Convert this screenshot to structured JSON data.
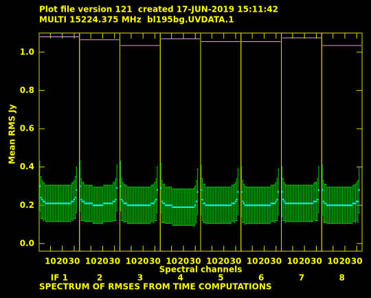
{
  "chart_data": {
    "type": "errorbar",
    "title": "Plot file version 121  created 17-JUN-2019 15:11:42",
    "subtitle": "MULTI 15224.375 MHz  bl195bg.UVDATA.1",
    "ylabel": "Mean RMS Jy",
    "xlabel": "Spectral channels",
    "footer": "SPECTRUM OF RMSES FROM TIME COMPUTATIONS",
    "ylim": [
      -0.04,
      1.1
    ],
    "yticks": [
      {
        "value": 0,
        "label": "0.0"
      },
      0.2,
      0.4,
      0.6,
      0.8,
      {
        "value": 1,
        "label": "1.0"
      }
    ],
    "xlim": [
      0.5,
      34.5
    ],
    "xticks": [
      10,
      20,
      30
    ],
    "x": [
      1,
      2,
      3,
      4,
      5,
      6,
      7,
      8,
      9,
      10,
      11,
      12,
      13,
      14,
      15,
      16,
      17,
      18,
      19,
      20,
      21,
      22,
      23,
      24,
      25,
      26,
      27,
      28,
      29,
      30,
      31,
      32
    ],
    "colors": {
      "points": "#00ffff",
      "bars": "#00c800",
      "max_line": "#e0a0e0",
      "frame": "#e0e000",
      "text": "#ffff00"
    },
    "series": [
      {
        "name": "IF 1",
        "max": 1.08,
        "values": [
          0.3,
          0.24,
          0.23,
          0.22,
          0.22,
          0.21,
          0.21,
          0.21,
          0.21,
          0.21,
          0.21,
          0.21,
          0.21,
          0.21,
          0.21,
          0.21,
          0.21,
          0.21,
          0.21,
          0.21,
          0.21,
          0.21,
          0.21,
          0.21,
          0.21,
          0.21,
          0.21,
          0.22,
          0.22,
          0.23,
          0.24,
          0.28
        ],
        "errors": [
          0.13,
          0.11,
          0.1,
          0.1,
          0.095,
          0.095,
          0.095,
          0.095,
          0.095,
          0.095,
          0.095,
          0.095,
          0.095,
          0.095,
          0.095,
          0.095,
          0.095,
          0.095,
          0.095,
          0.095,
          0.095,
          0.095,
          0.095,
          0.095,
          0.095,
          0.095,
          0.095,
          0.095,
          0.1,
          0.1,
          0.11,
          0.12
        ]
      },
      {
        "name": "2",
        "max": 1.065,
        "values": [
          0.3,
          0.23,
          0.22,
          0.22,
          0.21,
          0.21,
          0.21,
          0.21,
          0.21,
          0.21,
          0.21,
          0.2,
          0.2,
          0.2,
          0.2,
          0.2,
          0.2,
          0.2,
          0.2,
          0.2,
          0.21,
          0.21,
          0.21,
          0.21,
          0.21,
          0.21,
          0.21,
          0.21,
          0.22,
          0.22,
          0.23,
          0.29
        ],
        "errors": [
          0.13,
          0.11,
          0.1,
          0.1,
          0.095,
          0.095,
          0.095,
          0.095,
          0.095,
          0.095,
          0.095,
          0.095,
          0.095,
          0.095,
          0.095,
          0.095,
          0.095,
          0.095,
          0.095,
          0.095,
          0.095,
          0.095,
          0.095,
          0.095,
          0.095,
          0.095,
          0.095,
          0.095,
          0.1,
          0.1,
          0.11,
          0.12
        ]
      },
      {
        "name": "3",
        "max": 1.035,
        "values": [
          0.3,
          0.23,
          0.22,
          0.21,
          0.21,
          0.21,
          0.2,
          0.2,
          0.2,
          0.2,
          0.2,
          0.2,
          0.2,
          0.2,
          0.2,
          0.2,
          0.2,
          0.2,
          0.2,
          0.2,
          0.2,
          0.2,
          0.2,
          0.2,
          0.2,
          0.2,
          0.21,
          0.21,
          0.21,
          0.22,
          0.23,
          0.28
        ],
        "errors": [
          0.13,
          0.11,
          0.1,
          0.1,
          0.095,
          0.095,
          0.095,
          0.095,
          0.095,
          0.095,
          0.095,
          0.095,
          0.095,
          0.095,
          0.095,
          0.095,
          0.095,
          0.095,
          0.095,
          0.095,
          0.095,
          0.095,
          0.095,
          0.095,
          0.095,
          0.095,
          0.095,
          0.095,
          0.1,
          0.1,
          0.11,
          0.12
        ]
      },
      {
        "name": "4",
        "max": 1.07,
        "values": [
          0.29,
          0.22,
          0.21,
          0.21,
          0.2,
          0.2,
          0.2,
          0.2,
          0.2,
          0.2,
          0.19,
          0.19,
          0.19,
          0.19,
          0.19,
          0.19,
          0.19,
          0.19,
          0.19,
          0.19,
          0.19,
          0.19,
          0.19,
          0.19,
          0.19,
          0.19,
          0.19,
          0.19,
          0.19,
          0.2,
          0.22,
          0.27
        ],
        "errors": [
          0.13,
          0.11,
          0.1,
          0.1,
          0.095,
          0.095,
          0.095,
          0.095,
          0.095,
          0.095,
          0.095,
          0.095,
          0.095,
          0.095,
          0.095,
          0.095,
          0.095,
          0.095,
          0.095,
          0.095,
          0.095,
          0.095,
          0.095,
          0.095,
          0.095,
          0.095,
          0.095,
          0.095,
          0.1,
          0.1,
          0.11,
          0.12
        ]
      },
      {
        "name": "5",
        "max": 1.055,
        "values": [
          0.28,
          0.23,
          0.21,
          0.21,
          0.2,
          0.2,
          0.2,
          0.2,
          0.2,
          0.2,
          0.2,
          0.2,
          0.2,
          0.2,
          0.2,
          0.2,
          0.2,
          0.2,
          0.2,
          0.2,
          0.2,
          0.2,
          0.2,
          0.2,
          0.2,
          0.2,
          0.21,
          0.21,
          0.21,
          0.22,
          0.23,
          0.27
        ],
        "errors": [
          0.13,
          0.11,
          0.1,
          0.1,
          0.095,
          0.095,
          0.095,
          0.095,
          0.095,
          0.095,
          0.095,
          0.095,
          0.095,
          0.095,
          0.095,
          0.095,
          0.095,
          0.095,
          0.095,
          0.095,
          0.095,
          0.095,
          0.095,
          0.095,
          0.095,
          0.095,
          0.095,
          0.095,
          0.1,
          0.1,
          0.11,
          0.12
        ]
      },
      {
        "name": "6",
        "max": 1.055,
        "values": [
          0.27,
          0.22,
          0.21,
          0.2,
          0.2,
          0.2,
          0.2,
          0.2,
          0.2,
          0.2,
          0.2,
          0.2,
          0.2,
          0.2,
          0.2,
          0.2,
          0.2,
          0.2,
          0.2,
          0.2,
          0.2,
          0.2,
          0.2,
          0.2,
          0.2,
          0.21,
          0.21,
          0.21,
          0.21,
          0.22,
          0.23,
          0.27
        ],
        "errors": [
          0.13,
          0.11,
          0.1,
          0.1,
          0.095,
          0.095,
          0.095,
          0.095,
          0.095,
          0.095,
          0.095,
          0.095,
          0.095,
          0.095,
          0.095,
          0.095,
          0.095,
          0.095,
          0.095,
          0.095,
          0.095,
          0.095,
          0.095,
          0.095,
          0.095,
          0.095,
          0.095,
          0.095,
          0.1,
          0.1,
          0.11,
          0.12
        ]
      },
      {
        "name": "7",
        "max": 1.075,
        "values": [
          0.27,
          0.23,
          0.22,
          0.21,
          0.21,
          0.21,
          0.21,
          0.21,
          0.21,
          0.21,
          0.21,
          0.21,
          0.21,
          0.21,
          0.21,
          0.21,
          0.21,
          0.21,
          0.21,
          0.21,
          0.21,
          0.21,
          0.21,
          0.21,
          0.21,
          0.21,
          0.21,
          0.22,
          0.22,
          0.22,
          0.23,
          0.28
        ],
        "errors": [
          0.13,
          0.11,
          0.1,
          0.1,
          0.095,
          0.095,
          0.095,
          0.095,
          0.095,
          0.095,
          0.095,
          0.095,
          0.095,
          0.095,
          0.095,
          0.095,
          0.095,
          0.095,
          0.095,
          0.095,
          0.095,
          0.095,
          0.095,
          0.095,
          0.095,
          0.095,
          0.095,
          0.095,
          0.1,
          0.1,
          0.11,
          0.12
        ]
      },
      {
        "name": "8",
        "max": 1.035,
        "values": [
          0.28,
          0.22,
          0.21,
          0.21,
          0.2,
          0.2,
          0.2,
          0.2,
          0.2,
          0.2,
          0.2,
          0.2,
          0.2,
          0.2,
          0.2,
          0.2,
          0.2,
          0.2,
          0.2,
          0.2,
          0.2,
          0.2,
          0.2,
          0.2,
          0.2,
          0.2,
          0.21,
          0.21,
          0.21,
          0.22,
          0.22,
          0.28
        ],
        "errors": [
          0.13,
          0.11,
          0.1,
          0.1,
          0.095,
          0.095,
          0.095,
          0.095,
          0.095,
          0.095,
          0.095,
          0.095,
          0.095,
          0.095,
          0.095,
          0.095,
          0.095,
          0.095,
          0.095,
          0.095,
          0.095,
          0.095,
          0.095,
          0.095,
          0.095,
          0.095,
          0.095,
          0.095,
          0.1,
          0.1,
          0.11,
          0.12
        ]
      }
    ]
  }
}
